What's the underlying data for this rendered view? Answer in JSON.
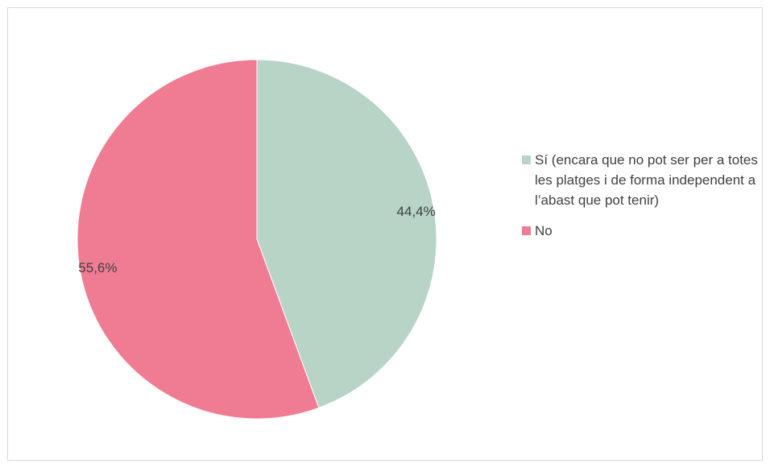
{
  "chart_data": {
    "type": "pie",
    "title": "",
    "start_angle_deg": 0,
    "direction": "clockwise",
    "legend_position": "right",
    "slices": [
      {
        "label": "Sí (encara que no pot ser per a totes les platges i de forma independent a l’abast que pot tenir)",
        "value": 44.4,
        "value_label": "44,4%",
        "color": "#b8d4c7"
      },
      {
        "label": "No",
        "value": 55.6,
        "value_label": "55,6%",
        "color": "#f07c93"
      }
    ]
  }
}
